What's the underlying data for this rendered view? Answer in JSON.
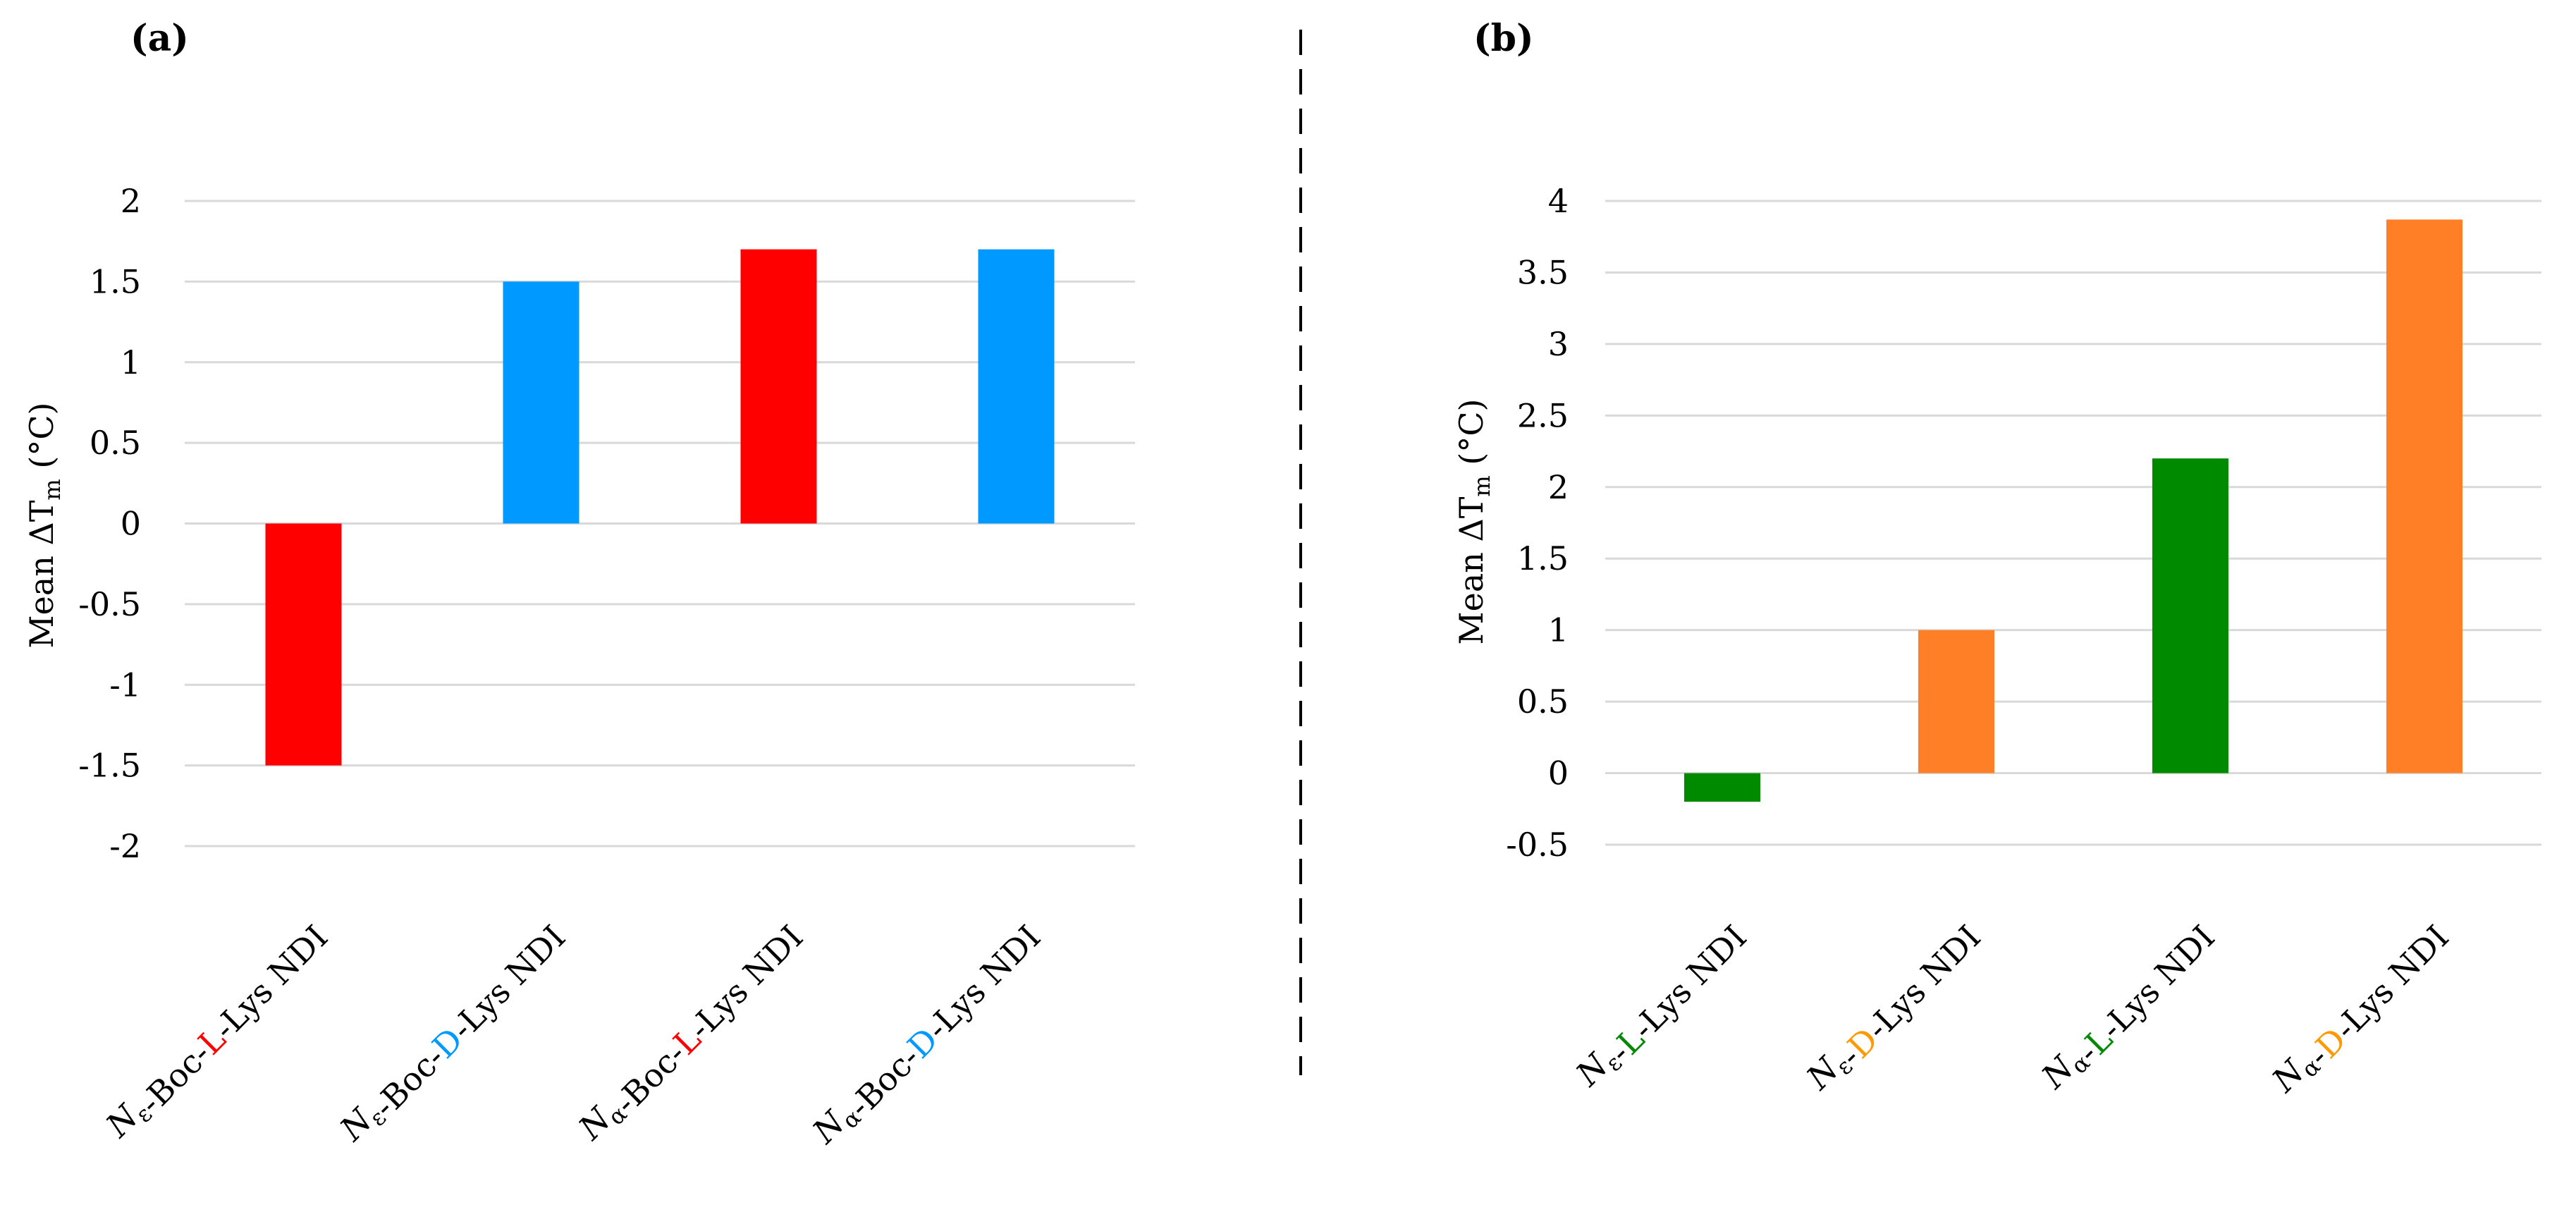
{
  "chart_data": [
    {
      "panel": "(a)",
      "type": "bar",
      "ylabel": "Mean ΔT",
      "ylabel_sub": "m",
      "ylabel_unit": " (°C)",
      "ylim": [
        -2,
        2
      ],
      "yticks": [
        "2",
        "1.5",
        "1",
        "0.5",
        "0",
        "-0.5",
        "-1",
        "-1.5",
        "-2"
      ],
      "ytick_values": [
        2,
        1.5,
        1,
        0.5,
        0,
        -0.5,
        -1,
        -1.5,
        -2
      ],
      "grid": true,
      "categories": [
        {
          "parts": [
            {
              "t": "N",
              "italic": true
            },
            {
              "t": "ε",
              "sub": true
            },
            {
              "t": "-Boc-"
            },
            {
              "t": "L",
              "color": "#ff0000"
            },
            {
              "t": "-Lys NDI"
            }
          ]
        },
        {
          "parts": [
            {
              "t": "N",
              "italic": true
            },
            {
              "t": "ε",
              "sub": true
            },
            {
              "t": "-Boc-"
            },
            {
              "t": "D",
              "color": "#0099ff"
            },
            {
              "t": "-Lys NDI"
            }
          ]
        },
        {
          "parts": [
            {
              "t": "N",
              "italic": true
            },
            {
              "t": "α",
              "sub": true
            },
            {
              "t": "-Boc-"
            },
            {
              "t": "L",
              "color": "#ff0000"
            },
            {
              "t": "-Lys NDI"
            }
          ]
        },
        {
          "parts": [
            {
              "t": "N",
              "italic": true
            },
            {
              "t": "α",
              "sub": true
            },
            {
              "t": "-Boc-"
            },
            {
              "t": "D",
              "color": "#0099ff"
            },
            {
              "t": "-Lys NDI"
            }
          ]
        }
      ],
      "values": [
        -1.5,
        1.5,
        1.7,
        1.7
      ],
      "colors": [
        "#ff0000",
        "#0099ff",
        "#ff0000",
        "#0099ff"
      ]
    },
    {
      "panel": "(b)",
      "type": "bar",
      "ylabel": "Mean ΔT",
      "ylabel_sub": "m",
      "ylabel_unit": " (°C)",
      "ylim": [
        -0.5,
        4
      ],
      "yticks": [
        "4",
        "3.5",
        "3",
        "2.5",
        "2",
        "1.5",
        "1",
        "0.5",
        "0",
        "-0.5"
      ],
      "ytick_values": [
        4,
        3.5,
        3,
        2.5,
        2,
        1.5,
        1,
        0.5,
        0,
        -0.5
      ],
      "grid": true,
      "categories": [
        {
          "parts": [
            {
              "t": "N",
              "italic": true
            },
            {
              "t": "ε",
              "sub": true
            },
            {
              "t": "-"
            },
            {
              "t": "L",
              "color": "#008a00"
            },
            {
              "t": "-Lys NDI"
            }
          ]
        },
        {
          "parts": [
            {
              "t": "N",
              "italic": true
            },
            {
              "t": "ε",
              "sub": true
            },
            {
              "t": "-"
            },
            {
              "t": "D",
              "color": "#ff9900"
            },
            {
              "t": "-Lys NDI"
            }
          ]
        },
        {
          "parts": [
            {
              "t": "N",
              "italic": true
            },
            {
              "t": "α",
              "sub": true
            },
            {
              "t": "-"
            },
            {
              "t": "L",
              "color": "#008a00"
            },
            {
              "t": "-Lys NDI"
            }
          ]
        },
        {
          "parts": [
            {
              "t": "N",
              "italic": true
            },
            {
              "t": "α",
              "sub": true
            },
            {
              "t": "-"
            },
            {
              "t": "D",
              "color": "#ff9900"
            },
            {
              "t": "-Lys NDI"
            }
          ]
        }
      ],
      "values": [
        -0.2,
        1.0,
        2.2,
        3.87
      ],
      "colors": [
        "#008a00",
        "#ff7f27",
        "#008a00",
        "#ff7f27"
      ]
    }
  ]
}
